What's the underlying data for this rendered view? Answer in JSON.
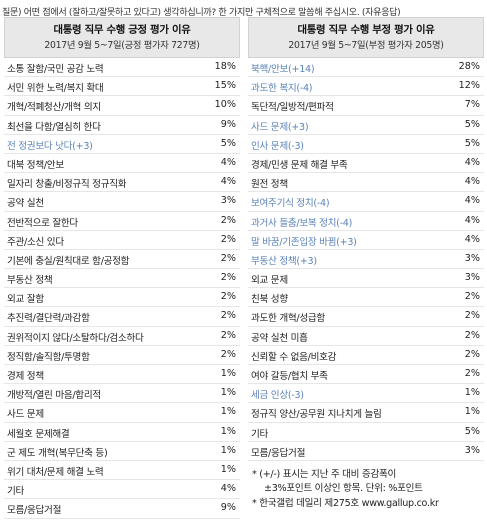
{
  "question": "질문) 어떤 점에서 (잘하고/잘못하고 있다고) 생각하십니까? 한 가지만 구체적으로 말씀해 주십시오. (자유응답)",
  "positive": {
    "title": "대통령 직무 수행 긍정 평가 이유",
    "subtitle": "2017년 9월 5~7일(긍정 평가자 727명)",
    "rows": [
      {
        "label": "소통 잘함/국민 공감 노력",
        "value": "18%"
      },
      {
        "label": "서민 위한 노력/복지 확대",
        "value": "15%"
      },
      {
        "label": "개혁/적폐청산/개혁 의지",
        "value": "10%"
      },
      {
        "label": "최선을 다함/열심히 한다",
        "value": "9%"
      },
      {
        "label": "전 정권보다 낫다(+3)",
        "value": "5%"
      },
      {
        "label": "대북 정책/안보",
        "value": "4%"
      },
      {
        "label": "일자리 창출/비정규직 정규직화",
        "value": "4%"
      },
      {
        "label": "공약 실천",
        "value": "3%"
      },
      {
        "label": "전반적으로 잘한다",
        "value": "2%"
      },
      {
        "label": "주관/소신 있다",
        "value": "2%"
      },
      {
        "label": "기본에 충실/원칙대로 함/공정함",
        "value": "2%"
      },
      {
        "label": "부동산 정책",
        "value": "2%"
      },
      {
        "label": "외교 잘함",
        "value": "2%"
      },
      {
        "label": "추진력/결단력/과감함",
        "value": "2%"
      },
      {
        "label": "권위적이지 않다/소탈하다/검소하다",
        "value": "2%"
      },
      {
        "label": "정직함/솔직함/투명함",
        "value": "2%"
      },
      {
        "label": "경제 정책",
        "value": "1%"
      },
      {
        "label": "개방적/열린 마음/합리적",
        "value": "1%"
      },
      {
        "label": "사드 문제",
        "value": "1%"
      },
      {
        "label": "세월호 문제해결",
        "value": "1%"
      },
      {
        "label": "군 제도 개혁(복무단축 등)",
        "value": "1%"
      },
      {
        "label": "위기 대처/문제 해결 노력",
        "value": "1%"
      },
      {
        "label": "기타",
        "value": "4%"
      },
      {
        "label": "모름/응답거절",
        "value": "9%"
      }
    ]
  },
  "negative": {
    "title": "대통령 직무 수행 부정 평가 이유",
    "subtitle": "2017년 9월 5~7일(부정 평가자 205명)",
    "rows": [
      {
        "label": "북핵/안보(+14)",
        "value": "28%"
      },
      {
        "label": "과도한 복지(-4)",
        "value": "12%"
      },
      {
        "label": "독단적/일방적/편파적",
        "value": "7%"
      },
      {
        "label": "사드 문제(+3)",
        "value": "5%"
      },
      {
        "label": "인사 문제(-3)",
        "value": "5%"
      },
      {
        "label": "경제/민생 문제 해결 부족",
        "value": "4%"
      },
      {
        "label": "원전 정책",
        "value": "4%"
      },
      {
        "label": "보여주기식 정치(-4)",
        "value": "4%"
      },
      {
        "label": "과거사 들춤/보복 정치(-4)",
        "value": "4%"
      },
      {
        "label": "말 바꿈/기존입장 바뀜(+3)",
        "value": "4%"
      },
      {
        "label": "부동산 정책(+3)",
        "value": "3%"
      },
      {
        "label": "외교 문제",
        "value": "3%"
      },
      {
        "label": "친북 성향",
        "value": "2%"
      },
      {
        "label": "과도한 개혁/성급함",
        "value": "2%"
      },
      {
        "label": "공약 실천 미흡",
        "value": "2%"
      },
      {
        "label": "신뢰할 수 없음/비호감",
        "value": "2%"
      },
      {
        "label": "여야 갈등/협치 부족",
        "value": "2%"
      },
      {
        "label": "세금 인상(-3)",
        "value": "1%"
      },
      {
        "label": "정규직 양산/공무원 지나치게 늘림",
        "value": "1%"
      },
      {
        "label": "기타",
        "value": "5%"
      },
      {
        "label": "모름/응답거절",
        "value": "3%"
      }
    ]
  },
  "notes": [
    "* (+/-) 표시는 지난 주 대비 증감폭이",
    "±3%포인트 이상인 항목. 단위: %포인트",
    "* 한국갤럽 데일리 제275호 www.gallup.co.kr"
  ],
  "highlight_color": "#5b82b8"
}
